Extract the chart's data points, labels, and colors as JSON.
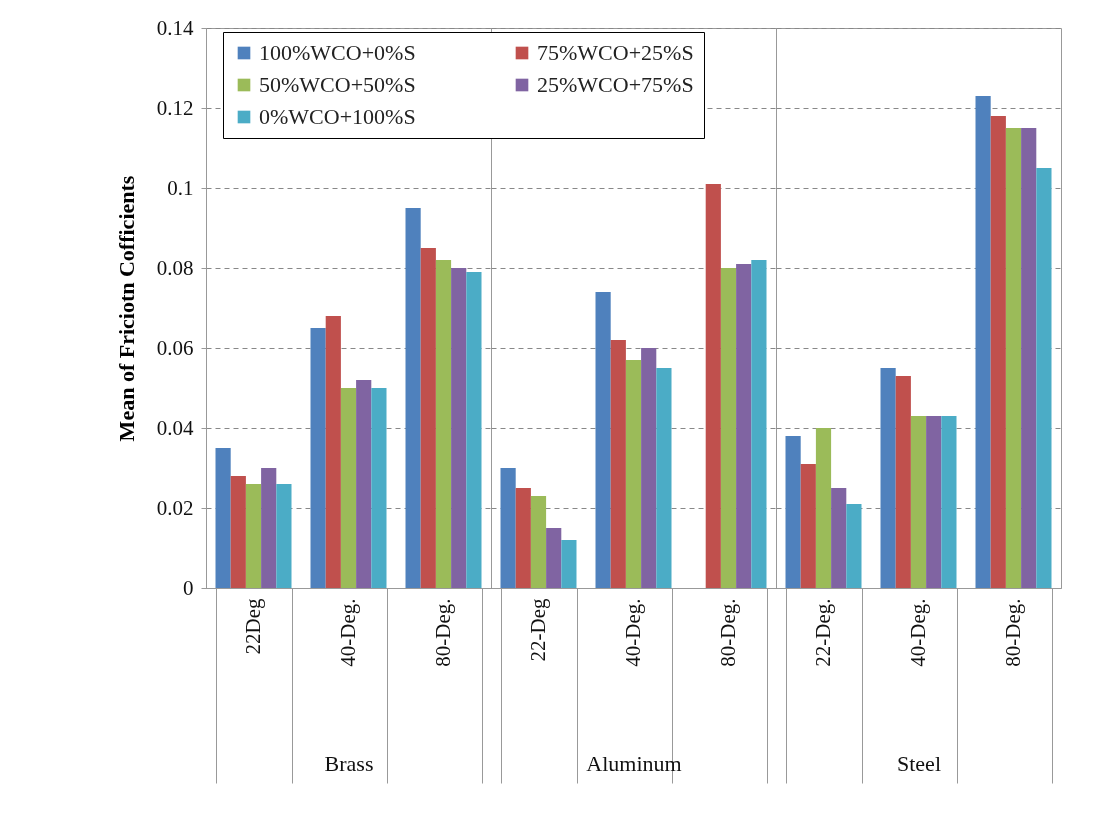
{
  "chart_data": [
    {
      "type": "bar",
      "xlabel": "Brass",
      "ylabel": "Mean of Friciotn Cofficients",
      "categories": [
        "22Deg",
        "40-Deg.",
        "80-Deg."
      ],
      "ylim": [
        0,
        0.14
      ],
      "yticks": [
        0,
        0.02,
        0.04,
        0.06,
        0.08,
        0.1,
        0.12,
        0.14
      ],
      "grid": "y",
      "legend": "top",
      "series": [
        {
          "name": "100%WCO+0%S",
          "color": "#4f81bd",
          "values": [
            0.035,
            0.065,
            0.095
          ]
        },
        {
          "name": "75%WCO+25%S",
          "color": "#c0504d",
          "values": [
            0.028,
            0.068,
            0.085
          ]
        },
        {
          "name": "50%WCO+50%S",
          "color": "#9bbb59",
          "values": [
            0.026,
            0.05,
            0.082
          ]
        },
        {
          "name": "25%WCO+75%S",
          "color": "#8064a2",
          "values": [
            0.03,
            0.052,
            0.08
          ]
        },
        {
          "name": "0%WCO+100%S",
          "color": "#4bacc6",
          "values": [
            0.026,
            0.05,
            0.079
          ]
        }
      ]
    },
    {
      "type": "bar",
      "xlabel": "Aluminum",
      "categories": [
        "22-Deg",
        "40-Deg.",
        "80-Deg."
      ],
      "ylim": [
        0,
        0.14
      ],
      "yticks": [
        0,
        0.02,
        0.04,
        0.06,
        0.08,
        0.1,
        0.12,
        0.14
      ],
      "grid": "y",
      "tick_labels": "x",
      "series": [
        {
          "name": "100%WCO+0%S",
          "color": "#4f81bd",
          "values": [
            0.03,
            0.074,
            null
          ]
        },
        {
          "name": "75%WCO+25%S",
          "color": "#c0504d",
          "values": [
            0.025,
            0.062,
            0.101
          ]
        },
        {
          "name": "50%WCO+50%S",
          "color": "#9bbb59",
          "values": [
            0.023,
            0.057,
            0.08
          ]
        },
        {
          "name": "25%WCO+75%S",
          "color": "#8064a2",
          "values": [
            0.015,
            0.06,
            0.081
          ]
        },
        {
          "name": "0%WCO+100%S",
          "color": "#4bacc6",
          "values": [
            0.012,
            0.055,
            0.082
          ]
        }
      ]
    },
    {
      "type": "bar",
      "xlabel": "Steel",
      "categories": [
        "22-Deg.",
        "40-Deg.",
        "80-Deg."
      ],
      "ylim": [
        0,
        0.14
      ],
      "yticks": [
        0,
        0.02,
        0.04,
        0.06,
        0.08,
        0.1,
        0.12,
        0.14
      ],
      "grid": "y",
      "tick_labels": "x",
      "series": [
        {
          "name": "100%WCO+0%S",
          "color": "#4f81bd",
          "values": [
            0.038,
            0.055,
            0.123
          ]
        },
        {
          "name": "75%WCO+25%S",
          "color": "#c0504d",
          "values": [
            0.031,
            0.053,
            0.118
          ]
        },
        {
          "name": "50%WCO+50%S",
          "color": "#9bbb59",
          "values": [
            0.04,
            0.043,
            0.115
          ]
        },
        {
          "name": "25%WCO+75%S",
          "color": "#8064a2",
          "values": [
            0.025,
            0.043,
            0.115
          ]
        },
        {
          "name": "0%WCO+100%S",
          "color": "#4bacc6",
          "values": [
            0.021,
            0.043,
            0.105
          ]
        }
      ]
    }
  ]
}
